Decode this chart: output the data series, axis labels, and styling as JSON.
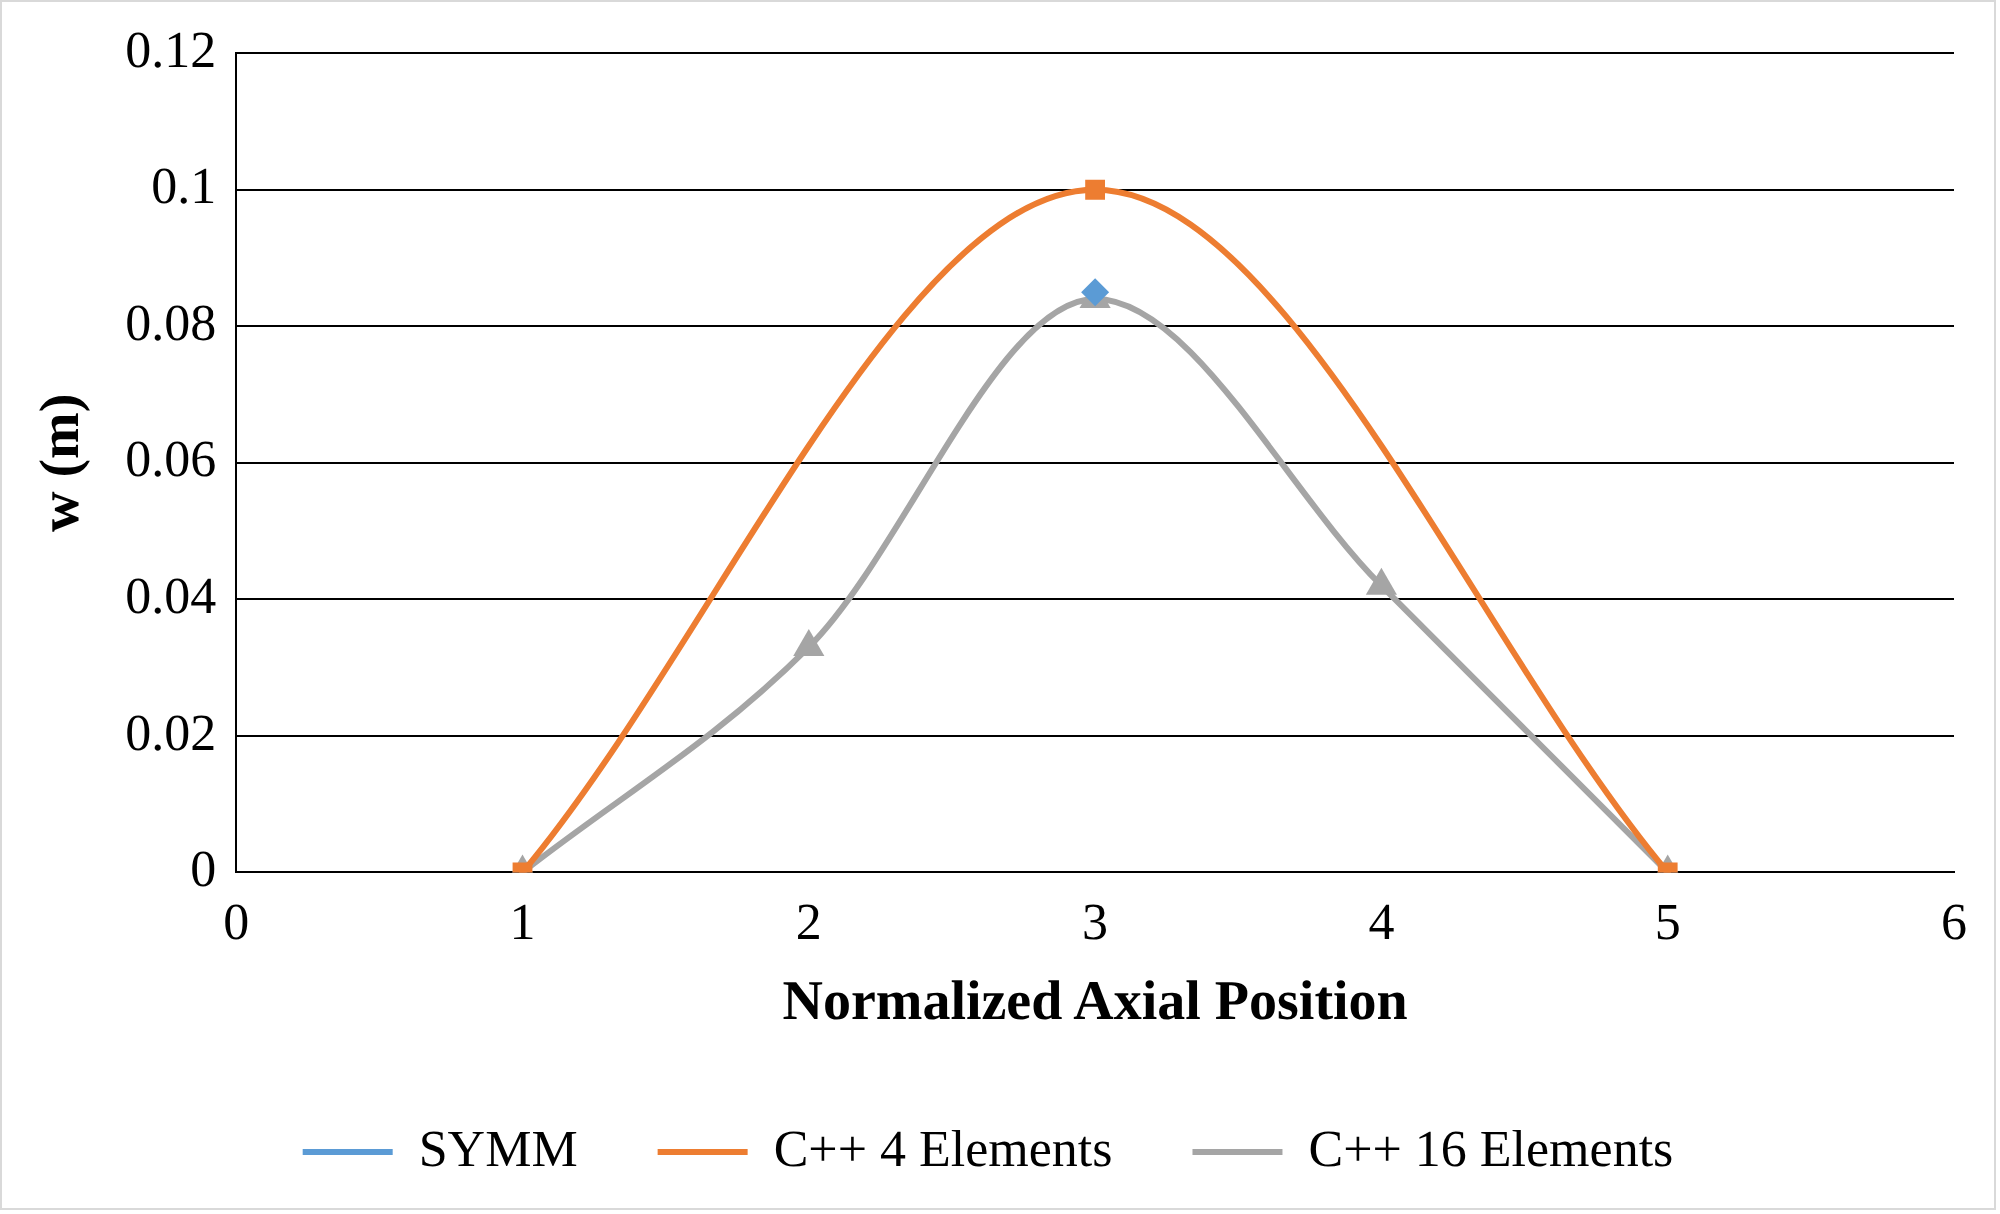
{
  "chart_data": {
    "type": "line",
    "xlabel": "Normalized Axial Position",
    "ylabel": "w (m)",
    "xlim": [
      0,
      6
    ],
    "xticks": [
      0,
      1,
      2,
      3,
      4,
      5,
      6
    ],
    "ylim": [
      0,
      0.12
    ],
    "yticks": [
      0,
      0.02,
      0.04,
      0.06,
      0.08,
      0.1,
      0.12
    ],
    "grid": "y",
    "legend": "bottom",
    "line_style": "solid",
    "series": [
      {
        "name": "SYMM",
        "color": "#5b9bd5",
        "marker": "diamond",
        "x": [
          3
        ],
        "values": [
          0.085
        ]
      },
      {
        "name": "C++ 4 Elements",
        "color": "#ed7d31",
        "marker": "square",
        "x": [
          1,
          3,
          5
        ],
        "values": [
          0,
          0.1,
          0
        ]
      },
      {
        "name": "C++ 16 Elements",
        "color": "#a5a5a5",
        "marker": "triangle",
        "x": [
          1,
          2,
          3,
          4,
          5
        ],
        "values": [
          0,
          0.033,
          0.084,
          0.042,
          0
        ]
      }
    ]
  }
}
